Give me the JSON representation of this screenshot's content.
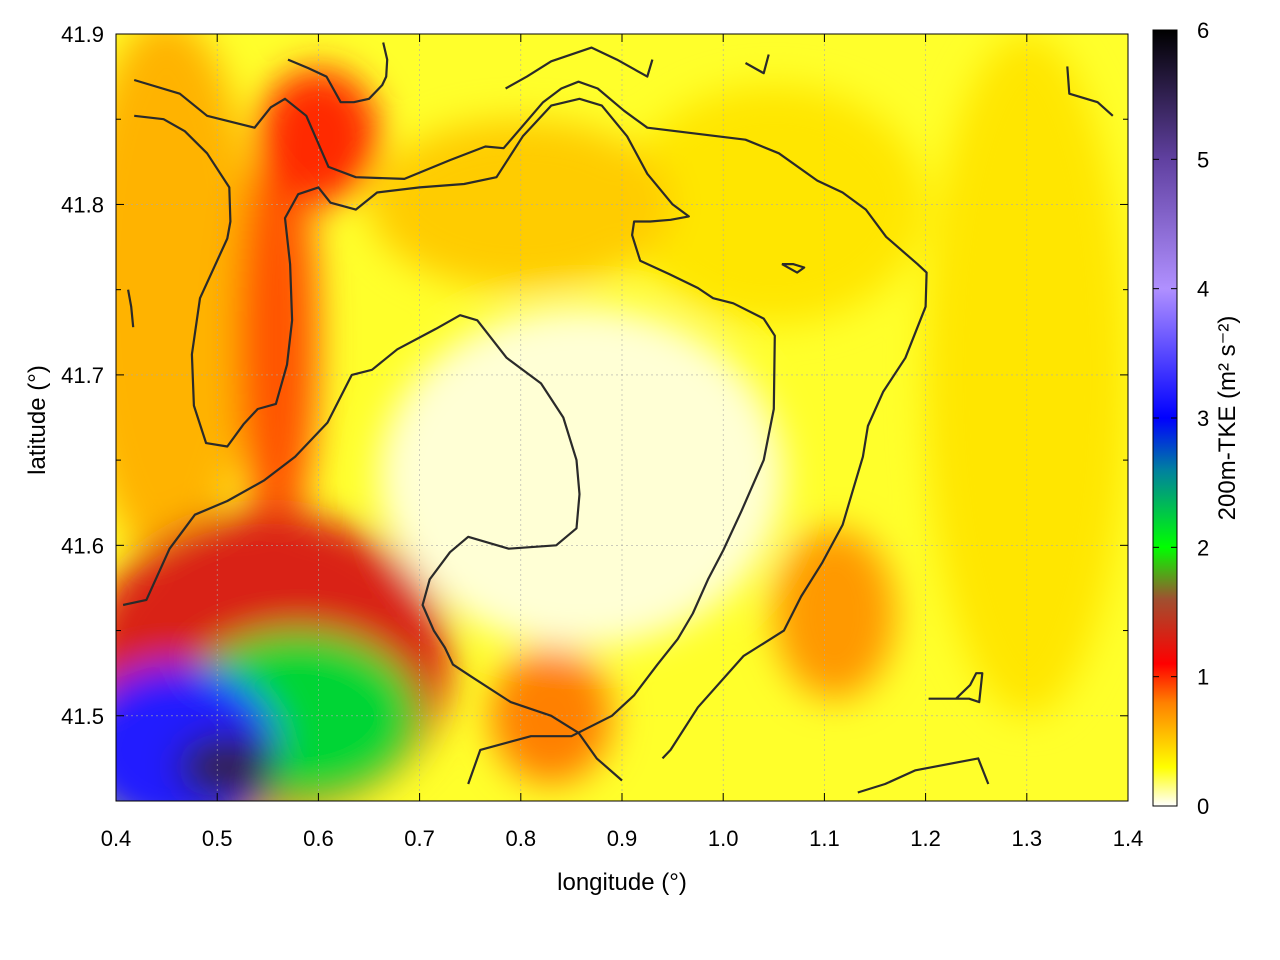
{
  "chart_data": {
    "type": "heatmap",
    "xlabel": "longitude (°)",
    "ylabel": "latitude (°)",
    "colorbar_label": "200m-TKE (m² s⁻²)",
    "xlim": [
      0.4,
      1.4
    ],
    "ylim": [
      41.45,
      41.9
    ],
    "clim": [
      0,
      6
    ],
    "x_ticks": [
      "0.4",
      "0.5",
      "0.6",
      "0.7",
      "0.8",
      "0.9",
      "1.0",
      "1.1",
      "1.2",
      "1.3",
      "1.4"
    ],
    "y_ticks": [
      "41.5",
      "41.6",
      "41.7",
      "41.8",
      "41.9"
    ],
    "colorbar_ticks": [
      "0",
      "1",
      "2",
      "3",
      "4",
      "5",
      "6"
    ],
    "grid": true,
    "colormap": [
      {
        "v": 0.0,
        "color": "#ffffff"
      },
      {
        "v": 0.3,
        "color": "#ffff00"
      },
      {
        "v": 0.8,
        "color": "#ff8000"
      },
      {
        "v": 1.1,
        "color": "#ff0000"
      },
      {
        "v": 1.6,
        "color": "#a05030"
      },
      {
        "v": 2.0,
        "color": "#00ff00"
      },
      {
        "v": 2.6,
        "color": "#0080a0"
      },
      {
        "v": 3.0,
        "color": "#0000ff"
      },
      {
        "v": 4.0,
        "color": "#b090ff"
      },
      {
        "v": 5.0,
        "color": "#6040a0"
      },
      {
        "v": 6.0,
        "color": "#000000"
      }
    ],
    "field_regions": [
      {
        "lon": 0.51,
        "lat": 41.47,
        "value": 5.5,
        "r_lon": 0.05,
        "r_lat": 0.02
      },
      {
        "lon": 0.46,
        "lat": 41.48,
        "value": 3.2,
        "r_lon": 0.1,
        "r_lat": 0.05
      },
      {
        "lon": 0.58,
        "lat": 41.5,
        "value": 2.2,
        "r_lon": 0.12,
        "r_lat": 0.05
      },
      {
        "lon": 0.55,
        "lat": 41.53,
        "value": 1.3,
        "r_lon": 0.18,
        "r_lat": 0.09
      },
      {
        "lon": 0.56,
        "lat": 41.72,
        "value": 0.9,
        "r_lon": 0.04,
        "r_lat": 0.12
      },
      {
        "lon": 0.6,
        "lat": 41.84,
        "value": 1.0,
        "r_lon": 0.06,
        "r_lat": 0.04
      },
      {
        "lon": 0.45,
        "lat": 41.75,
        "value": 0.6,
        "r_lon": 0.09,
        "r_lat": 0.16
      },
      {
        "lon": 0.83,
        "lat": 41.5,
        "value": 0.8,
        "r_lon": 0.06,
        "r_lat": 0.04
      },
      {
        "lon": 1.11,
        "lat": 41.56,
        "value": 0.7,
        "r_lon": 0.06,
        "r_lat": 0.05
      },
      {
        "lon": 0.8,
        "lat": 41.8,
        "value": 0.5,
        "r_lon": 0.15,
        "r_lat": 0.05
      },
      {
        "lon": 1.05,
        "lat": 41.8,
        "value": 0.4,
        "r_lon": 0.15,
        "r_lat": 0.07
      },
      {
        "lon": 1.3,
        "lat": 41.7,
        "value": 0.4,
        "r_lon": 0.1,
        "r_lat": 0.2
      }
    ],
    "contours": [
      [
        [
          0.418,
          41.873
        ],
        [
          0.463,
          41.865
        ],
        [
          0.49,
          41.852
        ],
        [
          0.537,
          41.845
        ],
        [
          0.553,
          41.857
        ],
        [
          0.567,
          41.862
        ],
        [
          0.588,
          41.852
        ],
        [
          0.61,
          41.822
        ],
        [
          0.637,
          41.816
        ],
        [
          0.685,
          41.815
        ],
        [
          0.73,
          41.826
        ],
        [
          0.765,
          41.834
        ],
        [
          0.783,
          41.833
        ],
        [
          0.822,
          41.86
        ],
        [
          0.84,
          41.868
        ],
        [
          0.857,
          41.872
        ],
        [
          0.876,
          41.868
        ],
        [
          0.902,
          41.855
        ],
        [
          0.925,
          41.845
        ],
        [
          1.022,
          41.838
        ],
        [
          1.055,
          41.83
        ],
        [
          1.093,
          41.814
        ],
        [
          1.118,
          41.807
        ],
        [
          1.141,
          41.797
        ],
        [
          1.161,
          41.781
        ],
        [
          1.192,
          41.765
        ],
        [
          1.201,
          41.76
        ],
        [
          1.2,
          41.74
        ],
        [
          1.18,
          41.71
        ],
        [
          1.158,
          41.69
        ],
        [
          1.143,
          41.67
        ],
        [
          1.138,
          41.652
        ],
        [
          1.128,
          41.632
        ],
        [
          1.118,
          41.612
        ],
        [
          1.098,
          41.59
        ],
        [
          1.077,
          41.57
        ],
        [
          1.06,
          41.55
        ],
        [
          1.02,
          41.535
        ],
        [
          0.975,
          41.505
        ],
        [
          0.948,
          41.48
        ],
        [
          0.94,
          41.475
        ]
      ],
      [
        [
          0.418,
          41.852
        ],
        [
          0.447,
          41.85
        ],
        [
          0.468,
          41.843
        ],
        [
          0.49,
          41.83
        ],
        [
          0.512,
          41.81
        ],
        [
          0.513,
          41.79
        ],
        [
          0.51,
          41.78
        ],
        [
          0.483,
          41.745
        ],
        [
          0.475,
          41.712
        ],
        [
          0.477,
          41.682
        ],
        [
          0.489,
          41.66
        ],
        [
          0.51,
          41.658
        ],
        [
          0.526,
          41.671
        ],
        [
          0.54,
          41.68
        ],
        [
          0.558,
          41.683
        ],
        [
          0.569,
          41.706
        ],
        [
          0.574,
          41.732
        ],
        [
          0.572,
          41.765
        ],
        [
          0.567,
          41.792
        ],
        [
          0.58,
          41.806
        ],
        [
          0.6,
          41.81
        ],
        [
          0.612,
          41.801
        ],
        [
          0.637,
          41.797
        ],
        [
          0.658,
          41.807
        ],
        [
          0.7,
          41.81
        ],
        [
          0.744,
          41.812
        ],
        [
          0.776,
          41.816
        ],
        [
          0.802,
          41.84
        ],
        [
          0.83,
          41.858
        ],
        [
          0.858,
          41.862
        ],
        [
          0.88,
          41.858
        ],
        [
          0.905,
          41.84
        ],
        [
          0.925,
          41.818
        ],
        [
          0.95,
          41.8
        ],
        [
          0.966,
          41.793
        ],
        [
          0.948,
          41.791
        ],
        [
          0.928,
          41.79
        ],
        [
          0.912,
          41.79
        ],
        [
          0.91,
          41.782
        ],
        [
          0.918,
          41.767
        ],
        [
          0.947,
          41.759
        ],
        [
          0.975,
          41.751
        ],
        [
          0.99,
          41.745
        ],
        [
          1.01,
          41.742
        ],
        [
          1.04,
          41.733
        ],
        [
          1.051,
          41.723
        ],
        [
          1.05,
          41.68
        ],
        [
          1.04,
          41.65
        ],
        [
          1.018,
          41.62
        ],
        [
          1.0,
          41.597
        ],
        [
          0.985,
          41.58
        ],
        [
          0.97,
          41.56
        ],
        [
          0.955,
          41.545
        ],
        [
          0.935,
          41.53
        ],
        [
          0.912,
          41.512
        ],
        [
          0.89,
          41.5
        ],
        [
          0.85,
          41.488
        ],
        [
          0.81,
          41.488
        ],
        [
          0.76,
          41.48
        ],
        [
          0.748,
          41.46
        ]
      ],
      [
        [
          0.407,
          41.565
        ],
        [
          0.43,
          41.568
        ],
        [
          0.453,
          41.598
        ],
        [
          0.478,
          41.618
        ],
        [
          0.51,
          41.626
        ],
        [
          0.546,
          41.638
        ],
        [
          0.577,
          41.652
        ],
        [
          0.609,
          41.672
        ],
        [
          0.633,
          41.7
        ],
        [
          0.653,
          41.703
        ],
        [
          0.678,
          41.715
        ],
        [
          0.716,
          41.727
        ],
        [
          0.74,
          41.735
        ],
        [
          0.757,
          41.732
        ],
        [
          0.786,
          41.71
        ],
        [
          0.82,
          41.695
        ],
        [
          0.842,
          41.675
        ],
        [
          0.855,
          41.65
        ],
        [
          0.858,
          41.63
        ],
        [
          0.855,
          41.61
        ],
        [
          0.835,
          41.6
        ],
        [
          0.788,
          41.598
        ],
        [
          0.748,
          41.605
        ],
        [
          0.73,
          41.596
        ],
        [
          0.71,
          41.58
        ],
        [
          0.703,
          41.565
        ],
        [
          0.714,
          41.55
        ],
        [
          0.725,
          41.54
        ],
        [
          0.733,
          41.53
        ],
        [
          0.751,
          41.523
        ],
        [
          0.79,
          41.508
        ],
        [
          0.83,
          41.5
        ],
        [
          0.857,
          41.49
        ],
        [
          0.875,
          41.475
        ],
        [
          0.9,
          41.462
        ]
      ],
      [
        [
          0.57,
          41.885
        ],
        [
          0.59,
          41.88
        ],
        [
          0.608,
          41.875
        ],
        [
          0.622,
          41.86
        ],
        [
          0.635,
          41.86
        ],
        [
          0.65,
          41.862
        ],
        [
          0.663,
          41.87
        ],
        [
          0.667,
          41.875
        ],
        [
          0.668,
          41.885
        ],
        [
          0.664,
          41.895
        ]
      ],
      [
        [
          0.785,
          41.868
        ],
        [
          0.806,
          41.875
        ],
        [
          0.83,
          41.884
        ],
        [
          0.87,
          41.892
        ],
        [
          0.895,
          41.885
        ],
        [
          0.925,
          41.875
        ],
        [
          0.93,
          41.885
        ]
      ],
      [
        [
          1.022,
          41.883
        ],
        [
          1.04,
          41.877
        ],
        [
          1.045,
          41.888
        ]
      ],
      [
        [
          1.34,
          41.881
        ],
        [
          1.342,
          41.865
        ],
        [
          1.37,
          41.86
        ],
        [
          1.385,
          41.852
        ]
      ],
      [
        [
          0.412,
          41.75
        ],
        [
          0.415,
          41.74
        ],
        [
          0.417,
          41.728
        ]
      ],
      [
        [
          1.058,
          41.765
        ],
        [
          1.073,
          41.76
        ],
        [
          1.08,
          41.763
        ],
        [
          1.069,
          41.765
        ],
        [
          1.058,
          41.765
        ]
      ],
      [
        [
          1.203,
          41.51
        ],
        [
          1.225,
          41.51
        ],
        [
          1.243,
          41.51
        ],
        [
          1.253,
          41.508
        ],
        [
          1.256,
          41.525
        ],
        [
          1.25,
          41.525
        ],
        [
          1.244,
          41.518
        ],
        [
          1.23,
          41.51
        ],
        [
          1.203,
          41.51
        ]
      ],
      [
        [
          1.133,
          41.455
        ],
        [
          1.16,
          41.46
        ],
        [
          1.19,
          41.468
        ],
        [
          1.252,
          41.475
        ],
        [
          1.262,
          41.46
        ]
      ]
    ]
  }
}
